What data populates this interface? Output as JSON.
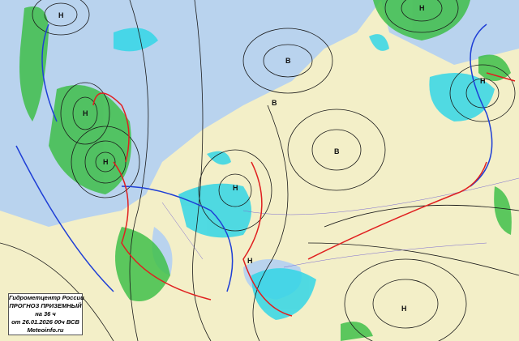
{
  "legend": {
    "organization": "Гидрометцентр России",
    "title": "ПРОГНОЗ ПРИЗЕМНЫЙ",
    "lead_time": "на 36 ч",
    "issued": "от 26.01.2026 00ч ВСВ",
    "site": "Meteoinfo.ru"
  },
  "pressure_centers": [
    {
      "type": "low",
      "label": "Н"
    },
    {
      "type": "low",
      "label": "Н"
    },
    {
      "type": "low",
      "label": "Н"
    },
    {
      "type": "low",
      "label": "Н"
    },
    {
      "type": "low",
      "label": "Н"
    },
    {
      "type": "low",
      "label": "Н"
    },
    {
      "type": "low",
      "label": "Н"
    },
    {
      "type": "high",
      "label": "В"
    },
    {
      "type": "high",
      "label": "В"
    },
    {
      "type": "high",
      "label": "В"
    },
    {
      "type": "low",
      "label": "Н"
    }
  ],
  "colors": {
    "land": "#f3efc8",
    "sea": "#b9d3ee",
    "precip_rain": "#3fbf4a",
    "precip_snow": "#33d6e6",
    "cold_front": "#1f3fd6",
    "warm_front": "#e02020",
    "isobar": "#1a1a1a"
  }
}
